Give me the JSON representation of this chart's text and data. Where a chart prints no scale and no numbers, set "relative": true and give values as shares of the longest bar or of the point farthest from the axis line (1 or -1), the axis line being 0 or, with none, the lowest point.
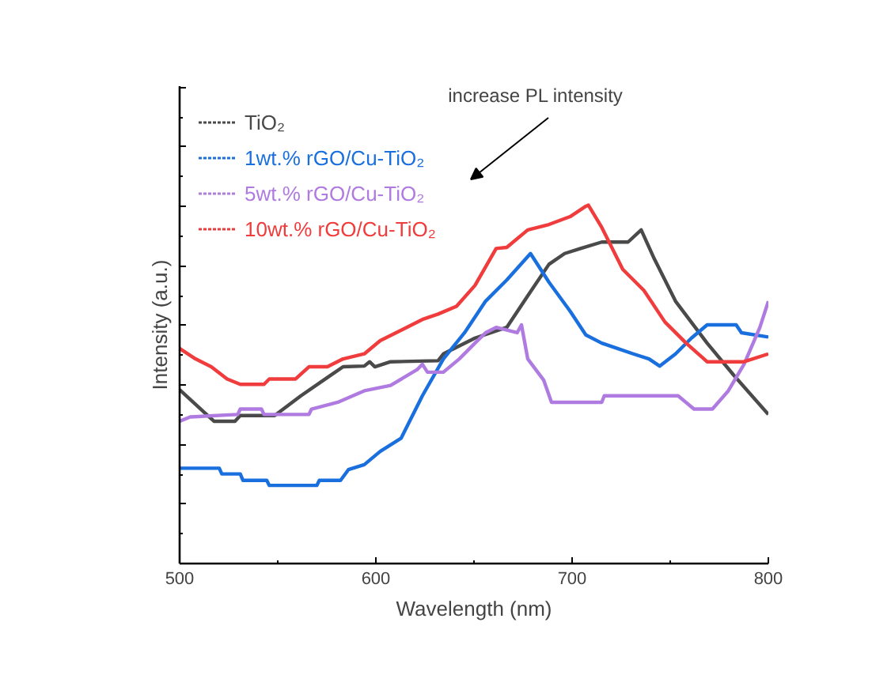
{
  "chart_data": {
    "type": "line",
    "relative": true,
    "xlabel": "Wavelength (nm)",
    "ylabel": "Intensity (a.u.)",
    "xlim": [
      500,
      800
    ],
    "xticks": [
      500,
      600,
      700,
      800
    ],
    "grid": false,
    "legend": "top left",
    "line_style": "solid",
    "marker": "none",
    "annotations": [
      "increase PL intensity"
    ],
    "series": [
      {
        "name": "TiO₂",
        "color": "#4a4a4a",
        "x": [
          500,
          517.5,
          528.2,
          530.9,
          548.4,
          551.1,
          561.8,
          575.3,
          583.3,
          594.1,
          596.8,
          599.5,
          607.5,
          631.7,
          634.4,
          639.8,
          650.5,
          666.7,
          677.4,
          688.2,
          696.2,
          704.3,
          715.1,
          728.5,
          735.2,
          741.9,
          752.7,
          768.8,
          782.3,
          800
        ],
        "values": [
          0.485,
          0.397,
          0.397,
          0.413,
          0.413,
          0.424,
          0.468,
          0.519,
          0.549,
          0.551,
          0.563,
          0.549,
          0.563,
          0.566,
          0.585,
          0.6,
          0.629,
          0.659,
          0.747,
          0.835,
          0.865,
          0.879,
          0.897,
          0.897,
          0.931,
          0.85,
          0.732,
          0.615,
          0.526,
          0.416
        ]
      },
      {
        "name": "1wt.% rGO/Cu-TiO₂",
        "color": "#1a6fdf",
        "x": [
          500,
          520.2,
          521.5,
          530.9,
          532.3,
          544.4,
          545.7,
          569.9,
          571.2,
          582,
          586,
          594.1,
          602.2,
          612.9,
          623.7,
          634.4,
          645.2,
          655.9,
          666.7,
          678.8,
          688.2,
          699,
          707,
          715.1,
          723.1,
          731.2,
          739.2,
          744.6,
          752.7,
          760.8,
          768.8,
          783.6,
          786.3,
          800
        ],
        "values": [
          0.266,
          0.266,
          0.25,
          0.25,
          0.232,
          0.232,
          0.218,
          0.218,
          0.232,
          0.232,
          0.262,
          0.276,
          0.313,
          0.35,
          0.468,
          0.571,
          0.644,
          0.732,
          0.791,
          0.865,
          0.785,
          0.704,
          0.638,
          0.615,
          0.6,
          0.585,
          0.571,
          0.551,
          0.585,
          0.629,
          0.666,
          0.666,
          0.644,
          0.632
        ]
      },
      {
        "name": "5wt.% rGO/Cu-TiO₂",
        "color": "#b07be0",
        "x": [
          500,
          505.4,
          529.6,
          530.9,
          541.7,
          543,
          565.9,
          567.2,
          580.6,
          594.1,
          607.5,
          621,
          623.7,
          626.3,
          634.4,
          642.5,
          650.5,
          655.9,
          661.3,
          672,
          674.2,
          677.4,
          685.5,
          689.5,
          715.1,
          716.4,
          754,
          762.1,
          771.5,
          779.6,
          787.6,
          795.7,
          800
        ],
        "values": [
          0.397,
          0.409,
          0.416,
          0.431,
          0.431,
          0.416,
          0.416,
          0.431,
          0.45,
          0.482,
          0.497,
          0.541,
          0.556,
          0.534,
          0.534,
          0.571,
          0.615,
          0.644,
          0.659,
          0.644,
          0.666,
          0.571,
          0.512,
          0.45,
          0.45,
          0.468,
          0.468,
          0.431,
          0.431,
          0.482,
          0.556,
          0.659,
          0.732
        ]
      },
      {
        "name": "10wt.% rGO/Cu-TiO₂",
        "color": "#f03c3c",
        "x": [
          500,
          508.1,
          516.1,
          524.2,
          530.9,
          543,
          545.7,
          559.1,
          565.9,
          575.3,
          583.3,
          594.1,
          602.2,
          612.9,
          623.7,
          631.7,
          641.1,
          650.5,
          661.3,
          666.7,
          677.4,
          688.2,
          699,
          707,
          708.3,
          715.1,
          725.8,
          736.6,
          747.3,
          758.1,
          768.8,
          787.6,
          800
        ],
        "values": [
          0.6,
          0.571,
          0.549,
          0.515,
          0.5,
          0.5,
          0.515,
          0.515,
          0.549,
          0.549,
          0.571,
          0.585,
          0.622,
          0.651,
          0.681,
          0.696,
          0.718,
          0.776,
          0.879,
          0.882,
          0.931,
          0.946,
          0.968,
          0.997,
          1.0,
          0.938,
          0.821,
          0.762,
          0.674,
          0.615,
          0.563,
          0.563,
          0.585
        ]
      }
    ]
  }
}
